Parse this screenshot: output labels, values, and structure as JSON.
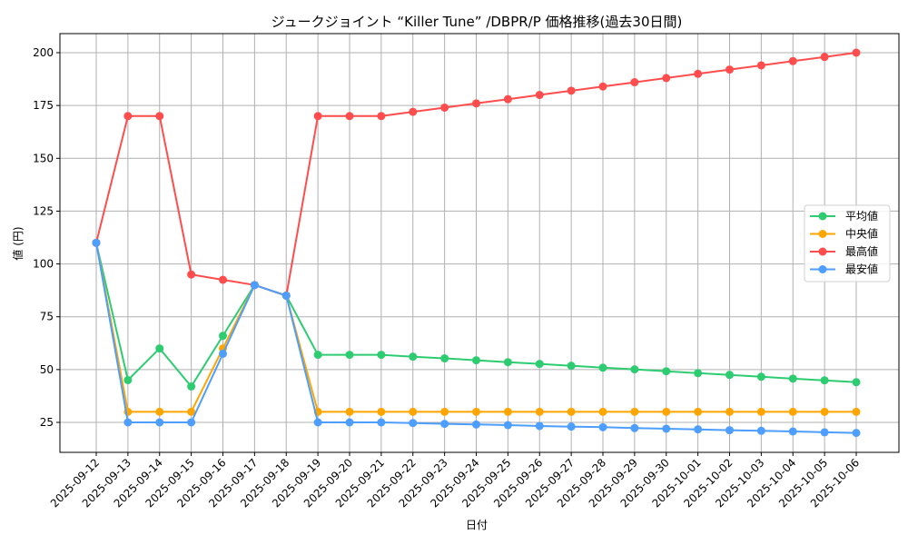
{
  "chart_data": {
    "type": "line",
    "title": "ジュークジョイント “Killer Tune” /DBPR/P 価格推移(過去30日間)",
    "xlabel": "日付",
    "ylabel": "値 (円)",
    "ylim": [
      11,
      209
    ],
    "yticks": [
      25,
      50,
      75,
      100,
      125,
      150,
      175,
      200
    ],
    "grid": true,
    "legend_position": "center right",
    "categories": [
      "2025-09-12",
      "2025-09-13",
      "2025-09-14",
      "2025-09-15",
      "2025-09-16",
      "2025-09-17",
      "2025-09-18",
      "2025-09-19",
      "2025-09-20",
      "2025-09-21",
      "2025-09-22",
      "2025-09-23",
      "2025-09-24",
      "2025-09-25",
      "2025-09-26",
      "2025-09-27",
      "2025-09-28",
      "2025-09-29",
      "2025-09-30",
      "2025-10-01",
      "2025-10-02",
      "2025-10-03",
      "2025-10-04",
      "2025-10-05",
      "2025-10-06"
    ],
    "series": [
      {
        "name": "平均値",
        "color": "#2ecc71",
        "values": [
          110,
          45,
          60,
          42,
          66,
          90,
          85,
          57,
          57,
          57,
          56.1,
          55.3,
          54.4,
          53.5,
          52.7,
          51.8,
          50.9,
          50.1,
          49.2,
          48.3,
          47.5,
          46.6,
          45.7,
          44.9,
          44
        ]
      },
      {
        "name": "中央値",
        "color": "#ffa500",
        "values": [
          110,
          30,
          30,
          30,
          60,
          90,
          85,
          30,
          30,
          30,
          30,
          30,
          30,
          30,
          30,
          30,
          30,
          30,
          30,
          30,
          30,
          30,
          30,
          30,
          30
        ]
      },
      {
        "name": "最高値",
        "color": "#ff4d4d",
        "values": [
          110,
          170,
          170,
          95,
          92.5,
          90,
          85,
          170,
          170,
          170,
          172,
          174,
          176,
          178,
          180,
          182,
          184,
          186,
          188,
          190,
          192,
          194,
          196,
          198,
          200
        ]
      },
      {
        "name": "最安値",
        "color": "#4d9eff",
        "values": [
          110,
          25,
          25,
          25,
          57.5,
          90,
          85,
          25,
          25,
          25,
          24.7,
          24.3,
          24,
          23.7,
          23.3,
          23,
          22.7,
          22.3,
          22,
          21.7,
          21.3,
          21,
          20.7,
          20.3,
          20
        ]
      }
    ]
  }
}
